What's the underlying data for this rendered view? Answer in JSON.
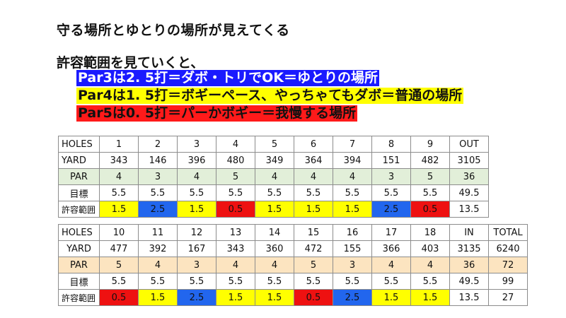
{
  "title": "守る場所とゆとりの場所が見えてくる",
  "subtitle": "許容範囲を見ていくと、",
  "highlights": [
    {
      "text": "Par3は2. 5打＝ダボ・トリでOK＝ゆとりの場所",
      "bg": "#1a1aff",
      "fg": "#ffffff"
    },
    {
      "text": "Par4は1. 5打＝ボギーペース、やっちゃてもダボ＝普通の場所",
      "bg": "#ffff00",
      "fg": "#111111"
    },
    {
      "text": "Par5は0. 5打＝パーかボギー＝我慢する場所",
      "bg": "#ff1a1a",
      "fg": "#111111"
    }
  ],
  "colors": {
    "allowance_2_5": "#2266ee",
    "allowance_1_5": "#ffff00",
    "allowance_0_5": "#ee1111",
    "par_row_front": "#e2efd9",
    "par_row_back": "#fce4c0"
  },
  "front_nine": {
    "labels": [
      "HOLES",
      "YARD",
      "PAR",
      "目標",
      "許容範囲"
    ],
    "holes": [
      "1",
      "2",
      "3",
      "4",
      "5",
      "6",
      "7",
      "8",
      "9"
    ],
    "total_label": "OUT",
    "yard": [
      "343",
      "146",
      "396",
      "480",
      "349",
      "364",
      "394",
      "151",
      "482"
    ],
    "yard_total": "3105",
    "par": [
      "4",
      "3",
      "4",
      "5",
      "4",
      "4",
      "4",
      "3",
      "5"
    ],
    "par_total": "36",
    "target": [
      "5.5",
      "5.5",
      "5.5",
      "5.5",
      "5.5",
      "5.5",
      "5.5",
      "5.5",
      "5.5"
    ],
    "target_total": "49.5",
    "allowance": [
      "1.5",
      "2.5",
      "1.5",
      "0.5",
      "1.5",
      "1.5",
      "1.5",
      "2.5",
      "0.5"
    ],
    "allowance_total": "13.5"
  },
  "back_nine": {
    "labels": [
      "HOLES",
      "YARD",
      "PAR",
      "目標",
      "許容範囲"
    ],
    "holes": [
      "10",
      "11",
      "12",
      "13",
      "14",
      "15",
      "16",
      "17",
      "18"
    ],
    "in_label": "IN",
    "total_label": "TOTAL",
    "yard": [
      "477",
      "392",
      "167",
      "343",
      "360",
      "472",
      "155",
      "366",
      "403"
    ],
    "yard_in": "3135",
    "yard_total": "6240",
    "par": [
      "5",
      "4",
      "3",
      "4",
      "4",
      "5",
      "3",
      "4",
      "4"
    ],
    "par_in": "36",
    "par_total": "72",
    "target": [
      "5.5",
      "5.5",
      "5.5",
      "5.5",
      "5.5",
      "5.5",
      "5.5",
      "5.5",
      "5.5"
    ],
    "target_in": "49.5",
    "target_total": "99",
    "allowance": [
      "0.5",
      "1.5",
      "2.5",
      "1.5",
      "1.5",
      "0.5",
      "2.5",
      "1.5",
      "1.5"
    ],
    "allowance_in": "13.5",
    "allowance_total": "27"
  }
}
